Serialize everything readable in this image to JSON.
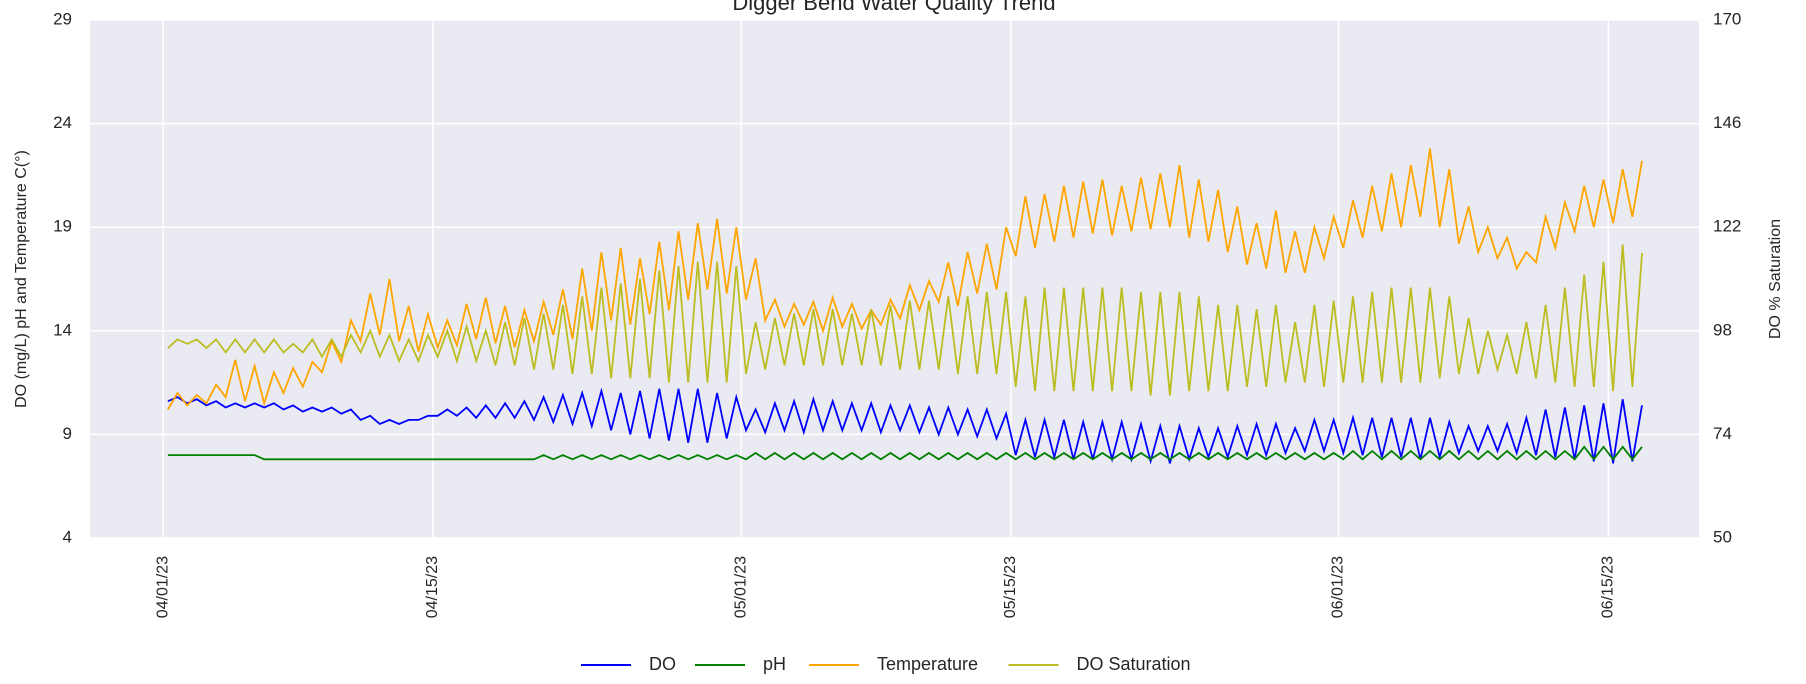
{
  "chart_data": {
    "type": "line",
    "title": "Digger Bend Water Quality Trend",
    "ylabel": "DO (mg/L) pH and Temperature C(°)",
    "y2label": "DO % Saturation",
    "grid": true,
    "legend": "bottom",
    "xlim": [
      "2023-03-28 05:00",
      "2023-06-19 17:00"
    ],
    "xticks": [
      {
        "value": "2023-04-01 00:00",
        "label": "04/01/23"
      },
      {
        "value": "2023-04-15 00:00",
        "label": "04/15/23"
      },
      {
        "value": "2023-05-01 00:00",
        "label": "05/01/23"
      },
      {
        "value": "2023-05-15 00:00",
        "label": "05/15/23"
      },
      {
        "value": "2023-06-01 00:00",
        "label": "06/01/23"
      },
      {
        "value": "2023-06-15 00:00",
        "label": "06/15/23"
      }
    ],
    "ylim": [
      4,
      29
    ],
    "yticks": [
      4,
      9,
      14,
      19,
      24,
      29
    ],
    "y2lim": [
      50,
      170
    ],
    "y2ticks": [
      50,
      74,
      98,
      122,
      146,
      170
    ],
    "x": [
      "2023-04-01 06:00",
      "2023-04-01 18:00",
      "2023-04-02 06:00",
      "2023-04-02 18:00",
      "2023-04-03 06:00",
      "2023-04-03 18:00",
      "2023-04-04 06:00",
      "2023-04-04 18:00",
      "2023-04-05 06:00",
      "2023-04-05 18:00",
      "2023-04-06 06:00",
      "2023-04-06 18:00",
      "2023-04-07 06:00",
      "2023-04-07 18:00",
      "2023-04-08 06:00",
      "2023-04-08 18:00",
      "2023-04-09 06:00",
      "2023-04-09 18:00",
      "2023-04-10 06:00",
      "2023-04-10 18:00",
      "2023-04-11 06:00",
      "2023-04-11 18:00",
      "2023-04-12 06:00",
      "2023-04-12 18:00",
      "2023-04-13 06:00",
      "2023-04-13 18:00",
      "2023-04-14 06:00",
      "2023-04-14 18:00",
      "2023-04-15 06:00",
      "2023-04-15 18:00",
      "2023-04-16 06:00",
      "2023-04-16 18:00",
      "2023-04-17 06:00",
      "2023-04-17 18:00",
      "2023-04-18 06:00",
      "2023-04-18 18:00",
      "2023-04-19 06:00",
      "2023-04-19 18:00",
      "2023-04-20 06:00",
      "2023-04-20 18:00",
      "2023-04-21 06:00",
      "2023-04-21 18:00",
      "2023-04-22 06:00",
      "2023-04-22 18:00",
      "2023-04-23 06:00",
      "2023-04-23 18:00",
      "2023-04-24 06:00",
      "2023-04-24 18:00",
      "2023-04-25 06:00",
      "2023-04-25 18:00",
      "2023-04-26 06:00",
      "2023-04-26 18:00",
      "2023-04-27 06:00",
      "2023-04-27 18:00",
      "2023-04-28 06:00",
      "2023-04-28 18:00",
      "2023-04-29 06:00",
      "2023-04-29 18:00",
      "2023-04-30 06:00",
      "2023-04-30 18:00",
      "2023-05-01 06:00",
      "2023-05-01 18:00",
      "2023-05-02 06:00",
      "2023-05-02 18:00",
      "2023-05-03 06:00",
      "2023-05-03 18:00",
      "2023-05-04 06:00",
      "2023-05-04 18:00",
      "2023-05-05 06:00",
      "2023-05-05 18:00",
      "2023-05-06 06:00",
      "2023-05-06 18:00",
      "2023-05-07 06:00",
      "2023-05-07 18:00",
      "2023-05-08 06:00",
      "2023-05-08 18:00",
      "2023-05-09 06:00",
      "2023-05-09 18:00",
      "2023-05-10 06:00",
      "2023-05-10 18:00",
      "2023-05-11 06:00",
      "2023-05-11 18:00",
      "2023-05-12 06:00",
      "2023-05-12 18:00",
      "2023-05-13 06:00",
      "2023-05-13 18:00",
      "2023-05-14 06:00",
      "2023-05-14 18:00",
      "2023-05-15 06:00",
      "2023-05-15 18:00",
      "2023-05-16 06:00",
      "2023-05-16 18:00",
      "2023-05-17 06:00",
      "2023-05-17 18:00",
      "2023-05-18 06:00",
      "2023-05-18 18:00",
      "2023-05-19 06:00",
      "2023-05-19 18:00",
      "2023-05-20 06:00",
      "2023-05-20 18:00",
      "2023-05-21 06:00",
      "2023-05-21 18:00",
      "2023-05-22 06:00",
      "2023-05-22 18:00",
      "2023-05-23 06:00",
      "2023-05-23 18:00",
      "2023-05-24 06:00",
      "2023-05-24 18:00",
      "2023-05-25 06:00",
      "2023-05-25 18:00",
      "2023-05-26 06:00",
      "2023-05-26 18:00",
      "2023-05-27 06:00",
      "2023-05-27 18:00",
      "2023-05-28 06:00",
      "2023-05-28 18:00",
      "2023-05-29 06:00",
      "2023-05-29 18:00",
      "2023-05-30 06:00",
      "2023-05-30 18:00",
      "2023-05-31 06:00",
      "2023-05-31 18:00",
      "2023-06-01 06:00",
      "2023-06-01 18:00",
      "2023-06-02 06:00",
      "2023-06-02 18:00",
      "2023-06-03 06:00",
      "2023-06-03 18:00",
      "2023-06-04 06:00",
      "2023-06-04 18:00",
      "2023-06-05 06:00",
      "2023-06-05 18:00",
      "2023-06-06 06:00",
      "2023-06-06 18:00",
      "2023-06-07 06:00",
      "2023-06-07 18:00",
      "2023-06-08 06:00",
      "2023-06-08 18:00",
      "2023-06-09 06:00",
      "2023-06-09 18:00",
      "2023-06-10 06:00",
      "2023-06-10 18:00",
      "2023-06-11 06:00",
      "2023-06-11 18:00",
      "2023-06-12 06:00",
      "2023-06-12 18:00",
      "2023-06-13 06:00",
      "2023-06-13 18:00",
      "2023-06-14 06:00",
      "2023-06-14 18:00",
      "2023-06-15 06:00",
      "2023-06-15 18:00",
      "2023-06-16 06:00",
      "2023-06-16 18:00"
    ],
    "series": [
      {
        "name": "DO",
        "color": "#0000ff",
        "values": [
          10.6,
          10.8,
          10.5,
          10.7,
          10.4,
          10.6,
          10.3,
          10.5,
          10.3,
          10.5,
          10.3,
          10.5,
          10.2,
          10.4,
          10.1,
          10.3,
          10.1,
          10.3,
          10.0,
          10.2,
          9.7,
          9.9,
          9.5,
          9.7,
          9.5,
          9.7,
          9.7,
          9.9,
          9.9,
          10.2,
          9.9,
          10.3,
          9.8,
          10.4,
          9.8,
          10.5,
          9.8,
          10.6,
          9.7,
          10.8,
          9.6,
          10.9,
          9.5,
          11.0,
          9.4,
          11.1,
          9.2,
          11.0,
          9.0,
          11.1,
          8.8,
          11.2,
          8.7,
          11.2,
          8.6,
          11.2,
          8.6,
          11.0,
          8.8,
          10.8,
          9.2,
          10.2,
          9.1,
          10.5,
          9.2,
          10.6,
          9.1,
          10.7,
          9.2,
          10.6,
          9.2,
          10.5,
          9.2,
          10.5,
          9.1,
          10.4,
          9.2,
          10.4,
          9.1,
          10.3,
          9.0,
          10.3,
          9.0,
          10.2,
          8.9,
          10.2,
          8.8,
          10.0,
          8.0,
          9.7,
          7.9,
          9.7,
          7.9,
          9.7,
          7.8,
          9.6,
          7.8,
          9.6,
          7.8,
          9.6,
          7.8,
          9.5,
          7.7,
          9.4,
          7.6,
          9.4,
          7.8,
          9.3,
          7.9,
          9.3,
          7.9,
          9.4,
          8.0,
          9.5,
          8.0,
          9.5,
          8.1,
          9.3,
          8.2,
          9.7,
          8.2,
          9.7,
          8.1,
          9.8,
          8.0,
          9.8,
          7.9,
          9.8,
          7.9,
          9.8,
          7.8,
          9.8,
          7.9,
          9.6,
          8.1,
          9.4,
          8.2,
          9.4,
          8.2,
          9.5,
          8.1,
          9.8,
          8.0,
          10.2,
          7.9,
          10.3,
          7.8,
          10.4,
          7.7,
          10.5,
          7.6,
          10.7,
          7.7,
          10.4
        ]
      },
      {
        "name": "pH",
        "color": "#008000",
        "values": [
          8.0,
          8.0,
          8.0,
          8.0,
          8.0,
          8.0,
          8.0,
          8.0,
          8.0,
          8.0,
          7.8,
          7.8,
          7.8,
          7.8,
          7.8,
          7.8,
          7.8,
          7.8,
          7.8,
          7.8,
          7.8,
          7.8,
          7.8,
          7.8,
          7.8,
          7.8,
          7.8,
          7.8,
          7.8,
          7.8,
          7.8,
          7.8,
          7.8,
          7.8,
          7.8,
          7.8,
          7.8,
          7.8,
          7.8,
          8.0,
          7.8,
          8.0,
          7.8,
          8.0,
          7.8,
          8.0,
          7.8,
          8.0,
          7.8,
          8.0,
          7.8,
          8.0,
          7.8,
          8.0,
          7.8,
          8.0,
          7.8,
          8.0,
          7.8,
          8.0,
          7.8,
          8.1,
          7.8,
          8.1,
          7.8,
          8.1,
          7.8,
          8.1,
          7.8,
          8.1,
          7.8,
          8.1,
          7.8,
          8.1,
          7.8,
          8.1,
          7.8,
          8.1,
          7.8,
          8.1,
          7.8,
          8.1,
          7.8,
          8.1,
          7.8,
          8.1,
          7.8,
          8.1,
          7.8,
          8.1,
          7.8,
          8.1,
          7.8,
          8.1,
          7.8,
          8.1,
          7.8,
          8.1,
          7.8,
          8.1,
          7.8,
          8.1,
          7.8,
          8.1,
          7.8,
          8.1,
          7.8,
          8.1,
          7.8,
          8.1,
          7.8,
          8.1,
          7.8,
          8.1,
          7.8,
          8.1,
          7.8,
          8.1,
          7.8,
          8.1,
          7.8,
          8.1,
          7.8,
          8.2,
          7.8,
          8.2,
          7.8,
          8.2,
          7.8,
          8.2,
          7.8,
          8.2,
          7.8,
          8.2,
          7.8,
          8.2,
          7.8,
          8.2,
          7.8,
          8.2,
          7.8,
          8.2,
          7.8,
          8.2,
          7.8,
          8.2,
          7.8,
          8.4,
          7.8,
          8.4,
          7.8,
          8.4,
          7.8,
          8.4
        ]
      },
      {
        "name": "Temperature",
        "color": "#ffa500",
        "values": [
          10.2,
          11.0,
          10.4,
          10.9,
          10.5,
          11.4,
          10.8,
          12.6,
          10.6,
          12.3,
          10.5,
          12.0,
          11.0,
          12.2,
          11.3,
          12.5,
          12.0,
          13.5,
          12.5,
          14.5,
          13.5,
          15.8,
          13.8,
          16.5,
          13.5,
          15.2,
          13.0,
          14.8,
          13.2,
          14.5,
          13.3,
          15.3,
          13.6,
          15.6,
          13.4,
          15.2,
          13.2,
          15.0,
          13.5,
          15.4,
          13.8,
          16.0,
          13.6,
          17.0,
          14.0,
          17.8,
          14.5,
          18.0,
          14.3,
          17.5,
          14.8,
          18.3,
          15.0,
          18.8,
          15.5,
          19.2,
          16.0,
          19.4,
          15.8,
          19.0,
          15.5,
          17.5,
          14.5,
          15.5,
          14.2,
          15.3,
          14.3,
          15.4,
          14.0,
          15.6,
          14.2,
          15.3,
          14.1,
          15.0,
          14.3,
          15.5,
          14.6,
          16.2,
          15.0,
          16.4,
          15.4,
          17.3,
          15.2,
          17.8,
          15.8,
          18.2,
          16.0,
          19.0,
          17.6,
          20.5,
          18.0,
          20.6,
          18.3,
          21.0,
          18.5,
          21.2,
          18.7,
          21.3,
          18.6,
          21.0,
          18.8,
          21.4,
          18.9,
          21.6,
          19.0,
          22.0,
          18.5,
          21.3,
          18.3,
          20.8,
          17.8,
          20.0,
          17.2,
          19.2,
          17.0,
          19.8,
          16.8,
          18.8,
          16.8,
          19.0,
          17.5,
          19.5,
          18.0,
          20.3,
          18.5,
          21.0,
          18.8,
          21.6,
          19.0,
          22.0,
          19.5,
          22.8,
          19.0,
          21.8,
          18.2,
          20.0,
          17.8,
          19.0,
          17.5,
          18.5,
          17.0,
          17.8,
          17.3,
          19.5,
          18.0,
          20.2,
          18.8,
          21.0,
          19.0,
          21.3,
          19.2,
          21.8,
          19.5,
          22.2
        ]
      },
      {
        "name": "DO Saturation",
        "color": "#bcbd22",
        "axis": "y2",
        "values": [
          94,
          96,
          95,
          96,
          94,
          96,
          93,
          96,
          93,
          96,
          93,
          96,
          93,
          95,
          93,
          96,
          92,
          96,
          92,
          97,
          93,
          98,
          92,
          97,
          91,
          96,
          91,
          97,
          92,
          98,
          91,
          99,
          91,
          98,
          90,
          100,
          90,
          101,
          89,
          102,
          89,
          104,
          88,
          106,
          88,
          108,
          87,
          109,
          87,
          110,
          87,
          112,
          86,
          113,
          86,
          114,
          86,
          114,
          86,
          113,
          88,
          100,
          89,
          101,
          90,
          102,
          90,
          103,
          90,
          103,
          90,
          102,
          90,
          103,
          90,
          104,
          89,
          105,
          89,
          105,
          89,
          106,
          88,
          106,
          88,
          107,
          88,
          107,
          85,
          106,
          84,
          108,
          84,
          108,
          84,
          108,
          84,
          108,
          84,
          108,
          84,
          107,
          83,
          107,
          83,
          107,
          84,
          106,
          84,
          104,
          84,
          104,
          85,
          103,
          85,
          104,
          86,
          100,
          86,
          104,
          85,
          105,
          86,
          106,
          86,
          107,
          86,
          108,
          86,
          108,
          86,
          108,
          87,
          106,
          88,
          101,
          88,
          98,
          89,
          97,
          88,
          100,
          87,
          104,
          86,
          108,
          85,
          111,
          85,
          114,
          84,
          118,
          85,
          116
        ]
      }
    ]
  }
}
